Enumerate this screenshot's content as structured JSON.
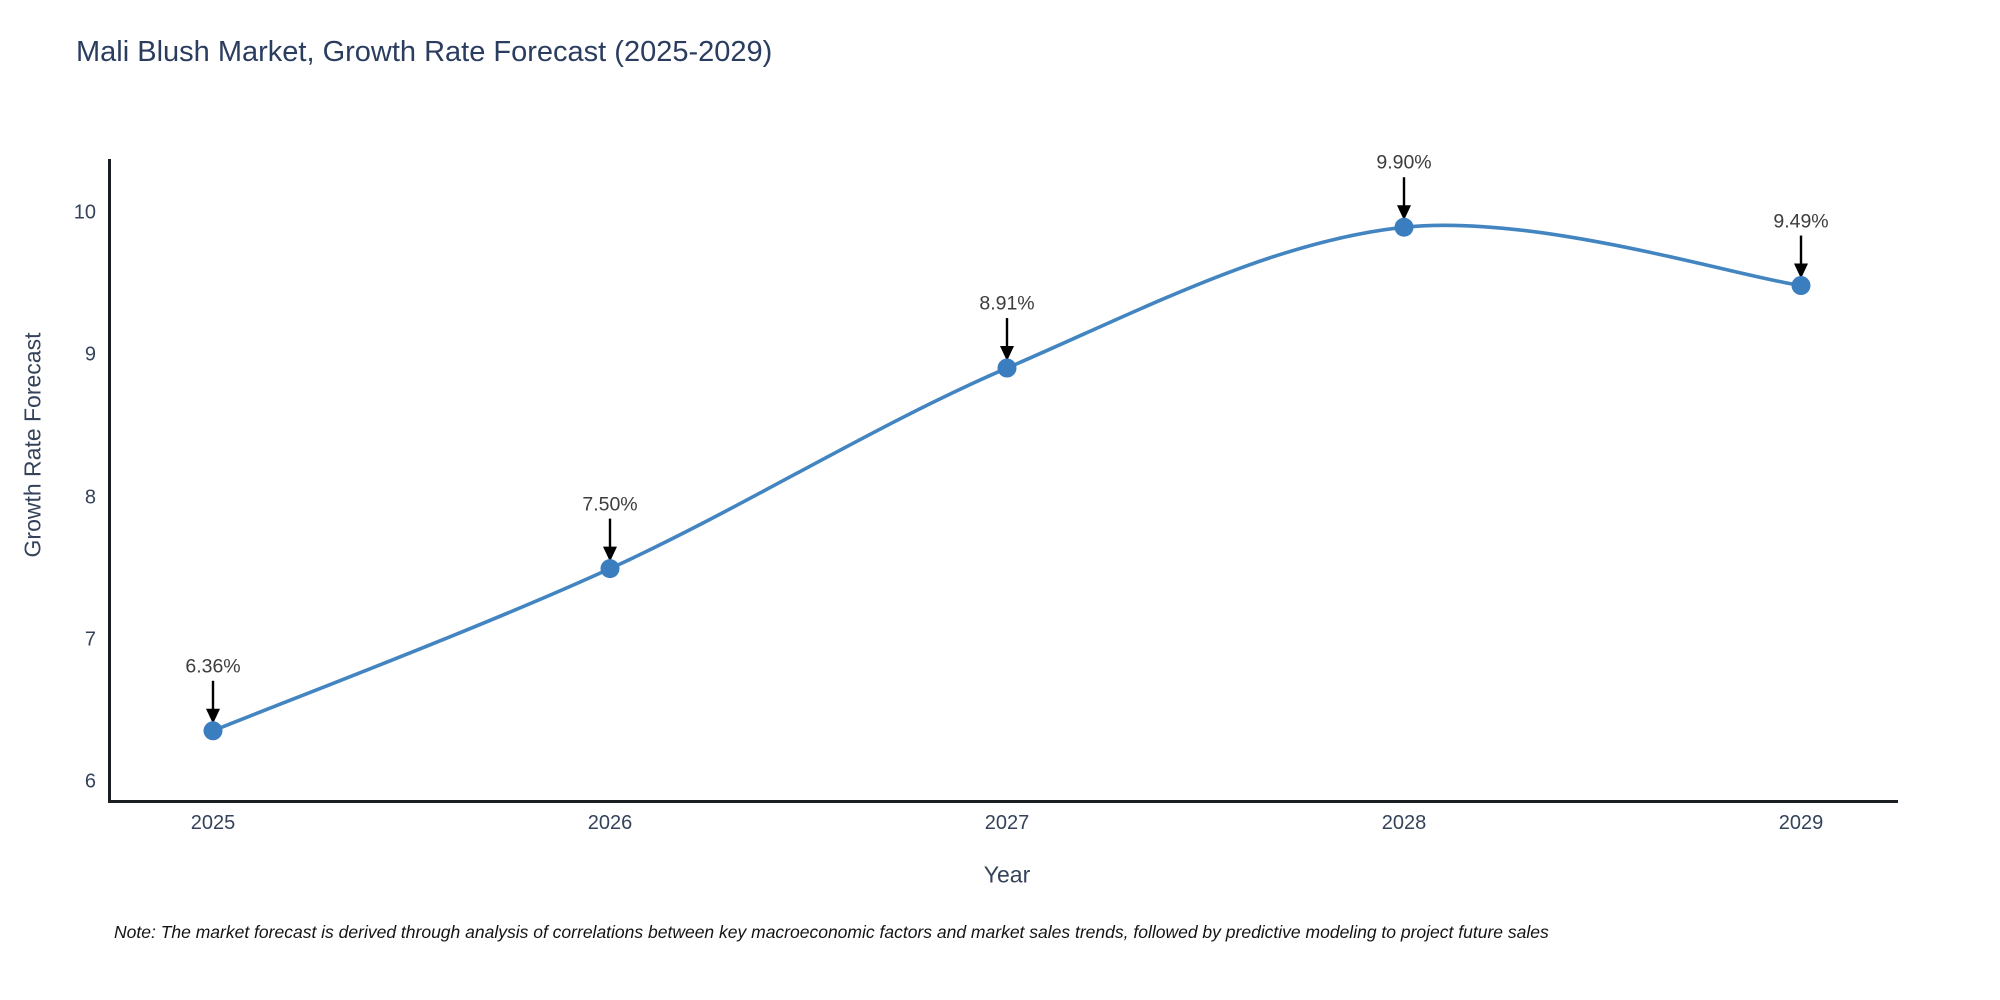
{
  "title": "Mali Blush Market, Growth Rate Forecast (2025-2029)",
  "footnote": "Note: The market forecast is derived through analysis of correlations between key macroeconomic factors and market sales trends, followed by predictive modeling to project future sales",
  "chart_data": {
    "type": "line",
    "title": "Mali Blush Market, Growth Rate Forecast (2025-2029)",
    "xlabel": "Year",
    "ylabel": "Growth Rate Forecast",
    "x": [
      2025,
      2026,
      2027,
      2028,
      2029
    ],
    "series": [
      {
        "name": "Growth Rate Forecast",
        "values": [
          6.36,
          7.5,
          8.91,
          9.9,
          9.49
        ]
      }
    ],
    "point_labels": [
      "6.36%",
      "7.50%",
      "8.91%",
      "9.90%",
      "9.49%"
    ],
    "xticks": [
      "2025",
      "2026",
      "2027",
      "2028",
      "2029"
    ],
    "yticks": [
      "6",
      "7",
      "8",
      "9",
      "10"
    ],
    "ytick_values": [
      6,
      7,
      8,
      9,
      10
    ],
    "ylim": [
      5.85,
      10.37
    ],
    "line_shape": "spline",
    "grid": false,
    "legend_position": "none",
    "line_color": "#4285c0",
    "marker_color": "#3a7ebf",
    "arrow_color": "#000000"
  }
}
